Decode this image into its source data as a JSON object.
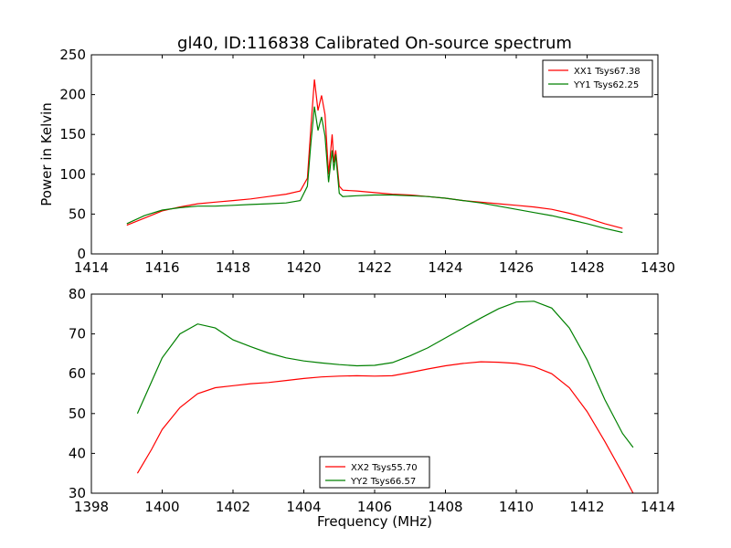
{
  "chart_data": [
    {
      "type": "line",
      "title": "gl40, ID:116838 Calibrated On-source spectrum",
      "xlabel": "",
      "ylabel": "Power in Kelvin",
      "xlim": [
        1414,
        1430
      ],
      "ylim": [
        0,
        250
      ],
      "xticks": [
        1414,
        1416,
        1418,
        1420,
        1422,
        1424,
        1426,
        1428,
        1430
      ],
      "yticks": [
        0,
        50,
        100,
        150,
        200,
        250
      ],
      "legend_position": "top-right",
      "colors": {
        "XX1": "#ff0000",
        "YY1": "#008000"
      },
      "series": [
        {
          "name": "XX1 Tsys67.38",
          "color": "#ff0000",
          "x": [
            1415.0,
            1415.5,
            1416.0,
            1416.5,
            1417.0,
            1417.5,
            1418.0,
            1418.5,
            1419.0,
            1419.5,
            1419.9,
            1420.1,
            1420.2,
            1420.3,
            1420.4,
            1420.5,
            1420.6,
            1420.7,
            1420.8,
            1420.85,
            1420.9,
            1421.0,
            1421.1,
            1421.5,
            1422.0,
            1422.5,
            1423.0,
            1423.5,
            1424.0,
            1424.5,
            1425.0,
            1425.5,
            1426.0,
            1426.5,
            1427.0,
            1427.5,
            1428.0,
            1428.5,
            1429.0
          ],
          "y": [
            36,
            45,
            54,
            59,
            63,
            65,
            67,
            69,
            72,
            75,
            79,
            95,
            160,
            219,
            180,
            199,
            175,
            100,
            150,
            115,
            130,
            85,
            80,
            79,
            77,
            75,
            74,
            72,
            70,
            67,
            65,
            63,
            61,
            59,
            56,
            51,
            45,
            38,
            32
          ]
        },
        {
          "name": "YY1 Tsys62.25",
          "color": "#008000",
          "x": [
            1415.0,
            1415.5,
            1416.0,
            1416.5,
            1417.0,
            1417.5,
            1418.0,
            1418.5,
            1419.0,
            1419.5,
            1419.9,
            1420.1,
            1420.2,
            1420.3,
            1420.4,
            1420.5,
            1420.6,
            1420.7,
            1420.8,
            1420.85,
            1420.9,
            1421.0,
            1421.1,
            1421.5,
            1422.0,
            1422.5,
            1423.0,
            1423.5,
            1424.0,
            1424.5,
            1425.0,
            1425.5,
            1426.0,
            1426.5,
            1427.0,
            1427.5,
            1428.0,
            1428.5,
            1429.0
          ],
          "y": [
            38,
            48,
            55,
            58,
            60,
            60,
            61,
            62,
            63,
            64,
            67,
            85,
            140,
            185,
            155,
            172,
            148,
            90,
            130,
            105,
            125,
            76,
            72,
            73,
            74,
            74,
            73,
            72,
            70,
            67,
            64,
            60,
            56,
            52,
            48,
            43,
            38,
            32,
            27
          ]
        }
      ]
    },
    {
      "type": "line",
      "title": "",
      "xlabel": "Frequency (MHz)",
      "ylabel": "",
      "xlim": [
        1398,
        1414
      ],
      "ylim": [
        30,
        80
      ],
      "xticks": [
        1398,
        1400,
        1402,
        1404,
        1406,
        1408,
        1410,
        1412,
        1414
      ],
      "yticks": [
        30,
        40,
        50,
        60,
        70,
        80
      ],
      "legend_position": "bottom-center",
      "series": [
        {
          "name": "XX2 Tsys55.70",
          "color": "#ff0000",
          "x": [
            1399.3,
            1399.7,
            1400.0,
            1400.5,
            1401.0,
            1401.5,
            1402.0,
            1402.5,
            1403.0,
            1403.5,
            1404.0,
            1404.5,
            1405.0,
            1405.5,
            1406.0,
            1406.5,
            1407.0,
            1407.5,
            1408.0,
            1408.5,
            1409.0,
            1409.5,
            1410.0,
            1410.5,
            1411.0,
            1411.5,
            1412.0,
            1412.5,
            1413.0,
            1413.3
          ],
          "y": [
            35,
            41,
            46,
            51.5,
            55,
            56.5,
            57,
            57.5,
            57.8,
            58.3,
            58.8,
            59.2,
            59.4,
            59.5,
            59.4,
            59.5,
            60.3,
            61.2,
            62,
            62.6,
            63,
            62.9,
            62.6,
            61.8,
            60,
            56.5,
            50.5,
            43,
            35,
            30
          ]
        },
        {
          "name": "YY2 Tsys66.57",
          "color": "#008000",
          "x": [
            1399.3,
            1399.7,
            1400.0,
            1400.5,
            1401.0,
            1401.5,
            1402.0,
            1402.5,
            1403.0,
            1403.5,
            1404.0,
            1404.5,
            1405.0,
            1405.5,
            1406.0,
            1406.5,
            1407.0,
            1407.5,
            1408.0,
            1408.5,
            1409.0,
            1409.5,
            1410.0,
            1410.5,
            1411.0,
            1411.5,
            1412.0,
            1412.5,
            1413.0,
            1413.3
          ],
          "y": [
            50,
            58,
            64,
            70,
            72.5,
            71.5,
            68.5,
            66.8,
            65.2,
            64,
            63.2,
            62.7,
            62.3,
            62,
            62.1,
            62.8,
            64.5,
            66.5,
            69,
            71.5,
            74,
            76.3,
            78,
            78.2,
            76.5,
            71.5,
            63.5,
            53.5,
            45,
            41.5
          ]
        }
      ]
    }
  ]
}
